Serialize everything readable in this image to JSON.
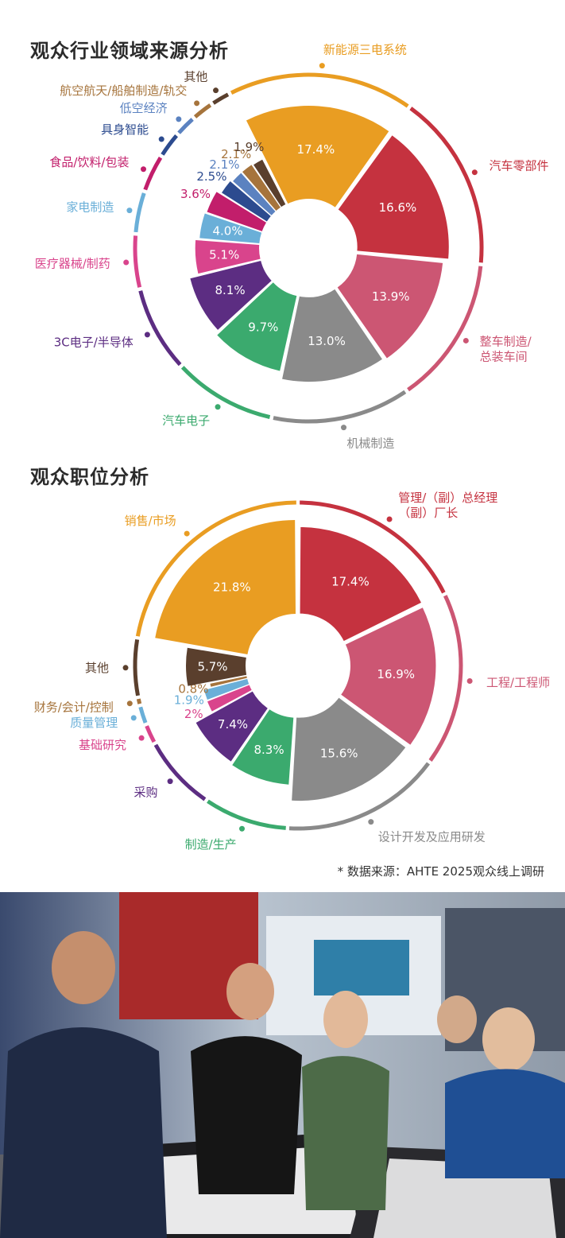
{
  "charts_meta": {
    "industry_title": "观众行业领域来源分析",
    "position_title": "观众职位分析"
  },
  "source_note": "* 数据来源：AHTE 2025观众线上调研",
  "chart_data": [
    {
      "type": "pie",
      "title": "观众行业领域来源分析",
      "style": "exploded rose pie with outer category ring",
      "slices": [
        {
          "label": "新能源三电系统",
          "value": 17.4,
          "display": "17.4%",
          "color": "#E99D22"
        },
        {
          "label": "汽车零部件",
          "value": 16.6,
          "display": "16.6%",
          "color": "#C5323F"
        },
        {
          "label": "整车制造/\n总装车间",
          "value": 13.9,
          "display": "13.9%",
          "color": "#CC5673"
        },
        {
          "label": "机械制造",
          "value": 13.0,
          "display": "13.0%",
          "color": "#8A8A8A"
        },
        {
          "label": "汽车电子",
          "value": 9.7,
          "display": "9.7%",
          "color": "#3BAA6E"
        },
        {
          "label": "3C电子/半导体",
          "value": 8.1,
          "display": "8.1%",
          "color": "#5C2D82"
        },
        {
          "label": "医疗器械/制药",
          "value": 5.1,
          "display": "5.1%",
          "color": "#D9448C"
        },
        {
          "label": "家电制造",
          "value": 4.0,
          "display": "4.0%",
          "color": "#6AAFD8"
        },
        {
          "label": "食品/饮料/包装",
          "value": 3.6,
          "display": "3.6%",
          "color": "#C21E6B"
        },
        {
          "label": "具身智能",
          "value": 2.5,
          "display": "2.5%",
          "color": "#2C4B8F"
        },
        {
          "label": "低空经济",
          "value": 2.1,
          "display": "2.1%",
          "color": "#5B82C0"
        },
        {
          "label": "航空航天/船舶制造/轨交",
          "value": 2.1,
          "display": "2.1%",
          "color": "#A6743C"
        },
        {
          "label": "其他",
          "value": 1.9,
          "display": "1.9%",
          "color": "#5A3F2D"
        }
      ]
    },
    {
      "type": "pie",
      "title": "观众职位分析",
      "style": "exploded rose pie with outer category ring",
      "slices": [
        {
          "label": "管理/（副）总经理\n（副）厂长",
          "value": 17.4,
          "display": "17.4%",
          "color": "#C5323F"
        },
        {
          "label": "工程/工程师",
          "value": 16.9,
          "display": "16.9%",
          "color": "#CC5673"
        },
        {
          "label": "设计开发及应用研发",
          "value": 15.6,
          "display": "15.6%",
          "color": "#8A8A8A"
        },
        {
          "label": "制造/生产",
          "value": 8.3,
          "display": "8.3%",
          "color": "#3BAA6E"
        },
        {
          "label": "采购",
          "value": 7.4,
          "display": "7.4%",
          "color": "#5C2D82"
        },
        {
          "label": "基础研究",
          "value": 2.0,
          "display": "2%",
          "color": "#D9448C"
        },
        {
          "label": "质量管理",
          "value": 1.9,
          "display": "1.9%",
          "color": "#6AAFD8"
        },
        {
          "label": "财务/会计/控制",
          "value": 0.8,
          "display": "0.8%",
          "color": "#A6743C"
        },
        {
          "label": "其他",
          "value": 5.7,
          "display": "5.7%",
          "color": "#5A3F2D"
        },
        {
          "label": "销售/市场",
          "value": 21.8,
          "display": "21.8%",
          "color": "#E99D22"
        }
      ]
    }
  ]
}
